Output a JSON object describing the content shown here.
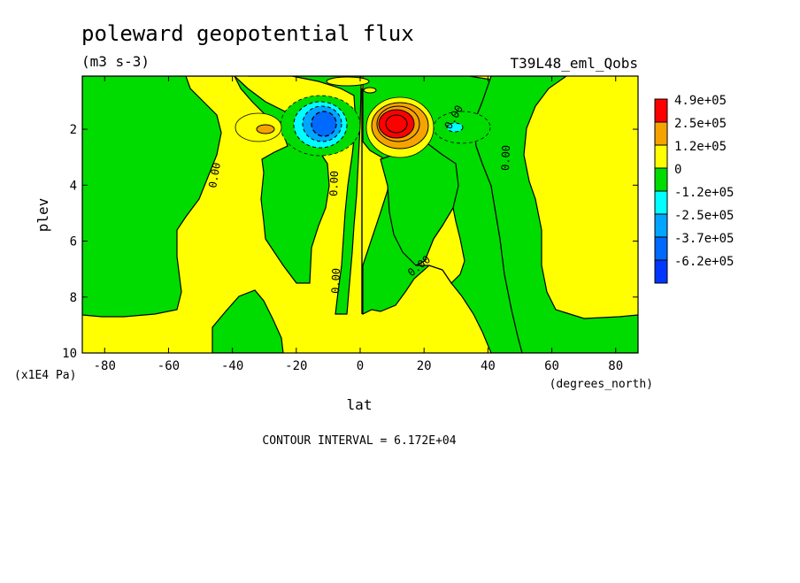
{
  "chart_data": {
    "type": "heatmap",
    "plot_type": "filled contour",
    "title": "poleward geopotential flux",
    "subtitle": "(m3 s-3)",
    "experiment_label": "T39L48_eml_Qobs",
    "xlabel": "lat",
    "x_units": "(degrees_north)",
    "ylabel": "plev",
    "y_units": "(x1E4 Pa)",
    "xlim": [
      -87,
      87
    ],
    "ylim": [
      10,
      0.1
    ],
    "y_axis_inverted": true,
    "x_ticks": [
      -80,
      -60,
      -40,
      -20,
      0,
      20,
      40,
      60,
      80
    ],
    "y_ticks": [
      2,
      4,
      6,
      8,
      10
    ],
    "contour_interval_text": "CONTOUR INTERVAL = 6.172E+04",
    "contour_interval": 61720,
    "colorbar": {
      "levels": [
        "4.9e+05",
        "2.5e+05",
        "1.2e+05",
        "0",
        "-1.2e+05",
        "-2.5e+05",
        "-3.7e+05",
        "-6.2e+05"
      ],
      "colors": [
        "#ff0000",
        "#f5a300",
        "#ffff00",
        "#00dc00",
        "#00ffff",
        "#00a5ff",
        "#0069ff",
        "#0037ff"
      ]
    },
    "contour_labels": [
      "0.00",
      "0.00",
      "0.00",
      "0.00",
      "0.00",
      "0.00"
    ],
    "features": [
      {
        "sign": "positive",
        "peak": "4.9e+05",
        "lat": 12,
        "plev": 1.8
      },
      {
        "sign": "negative",
        "peak": "-6.2e+05",
        "lat": -12,
        "plev": 1.8
      },
      {
        "sign": "positive",
        "peak": "1.2e+05",
        "lat": -30,
        "plev": 2.0
      },
      {
        "sign": "negative",
        "peak": "-2.5e+05",
        "lat": 32,
        "plev": 2.0
      }
    ]
  }
}
